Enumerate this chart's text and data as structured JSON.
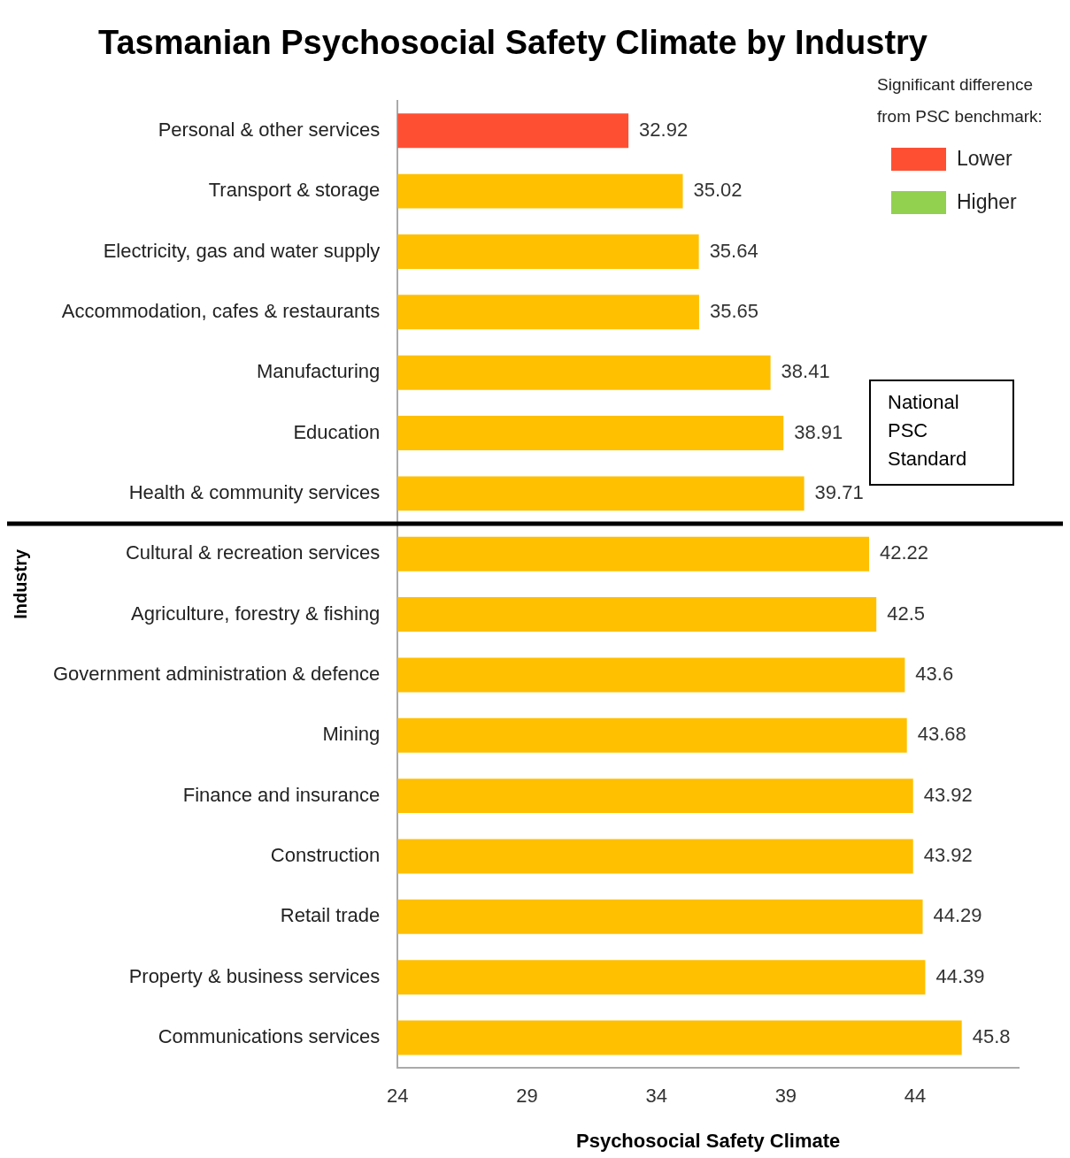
{
  "chart_data": {
    "type": "bar",
    "orientation": "horizontal",
    "title": "Tasmanian Psychosocial Safety Climate by Industry",
    "xlabel": "Psychosocial Safety Climate",
    "ylabel": "Industry",
    "legend_title": "Significant difference from PSC benchmark:",
    "legend": "top right",
    "grid": false,
    "data_labels": true,
    "categories": [
      "Personal & other services",
      "Transport & storage",
      "Electricity, gas and water supply",
      "Accommodation, cafes & restaurants",
      "Manufacturing",
      "Education",
      "Health & community services",
      "Cultural & recreation services",
      "Agriculture, forestry & fishing",
      "Government administration & defence",
      "Mining",
      "Finance and insurance",
      "Construction",
      "Retail trade",
      "Property & business services",
      "Communications services"
    ],
    "series": [
      {
        "name": "Lower",
        "color": "#ff4f33",
        "values": [
          32.92,
          null,
          null,
          null,
          null,
          null,
          null,
          null,
          null,
          null,
          null,
          null,
          null,
          null,
          null,
          null
        ]
      },
      {
        "name": "Higher",
        "color": "#92d050",
        "values": [
          null,
          null,
          null,
          null,
          null,
          null,
          null,
          null,
          null,
          null,
          null,
          null,
          null,
          null,
          null,
          null
        ]
      },
      {
        "color": "#ffc000",
        "values": [
          null,
          35.02,
          35.64,
          35.65,
          38.41,
          38.91,
          39.71,
          42.22,
          42.5,
          43.6,
          43.68,
          43.92,
          43.92,
          44.29,
          44.39,
          45.8
        ]
      }
    ],
    "xlim": [
      24,
      48
    ],
    "xticks": [
      24,
      29,
      34,
      39,
      44
    ],
    "annotations": [
      "National PSC Standard"
    ]
  }
}
